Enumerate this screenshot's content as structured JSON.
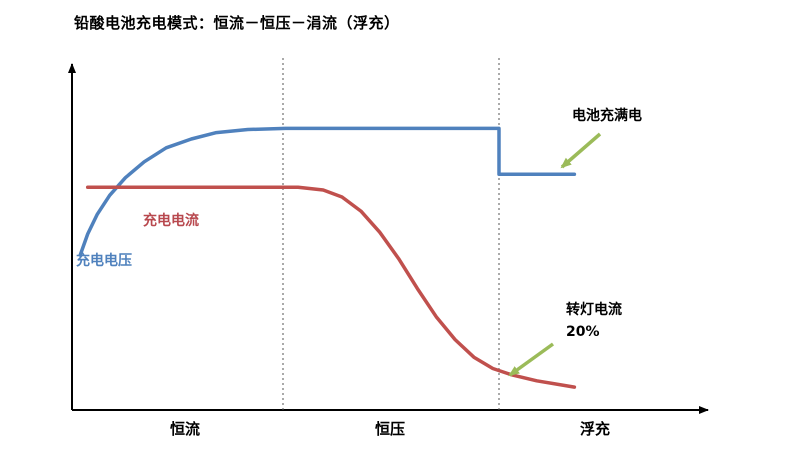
{
  "title": "铅酸电池充电模式：恒流－恒压－涓流（浮充）",
  "labels": {
    "current_label": "充电电流",
    "voltage_label": "充电电压",
    "full_charge": "电池充满电",
    "turn_light": "转灯电流\n20%",
    "phase1": "恒流",
    "phase2": "恒压",
    "phase3": "浮充"
  },
  "colors": {
    "voltage": "#4f81bd",
    "current": "#c0504d",
    "arrow": "#9bbb59",
    "axis": "#000000"
  },
  "chart_data": {
    "type": "line",
    "title": "铅酸电池充电模式：恒流－恒压－涓流（浮充）",
    "x_phases": [
      "恒流",
      "恒压",
      "浮充"
    ],
    "phase_boundaries_pct": [
      33.6,
      68
    ],
    "axis_range_pct": {
      "x": [
        0,
        100
      ],
      "y": [
        0,
        100
      ]
    },
    "grid": false,
    "series": [
      {
        "name": "充电电压",
        "color": "#4f81bd",
        "points": [
          [
            1.3,
            44
          ],
          [
            2.5,
            50
          ],
          [
            4,
            55.5
          ],
          [
            6,
            61
          ],
          [
            8.5,
            66
          ],
          [
            11.5,
            70.5
          ],
          [
            15,
            74.5
          ],
          [
            19,
            77
          ],
          [
            23,
            78.8
          ],
          [
            28,
            79.7
          ],
          [
            34,
            80
          ],
          [
            68,
            80
          ],
          [
            68,
            67
          ],
          [
            80,
            67
          ]
        ]
      },
      {
        "name": "充电电流",
        "color": "#c0504d",
        "points": [
          [
            2.5,
            63.3
          ],
          [
            20,
            63.3
          ],
          [
            36,
            63.3
          ],
          [
            40,
            62.5
          ],
          [
            43,
            60.5
          ],
          [
            46,
            56.5
          ],
          [
            49,
            50.5
          ],
          [
            52,
            43
          ],
          [
            55,
            34.5
          ],
          [
            58,
            26.5
          ],
          [
            61,
            20
          ],
          [
            64,
            15
          ],
          [
            67,
            11.8
          ],
          [
            70,
            10
          ],
          [
            74,
            8.3
          ],
          [
            80,
            6.5
          ]
        ]
      }
    ],
    "annotations": [
      {
        "text": "电池充满电",
        "points_to_series": "充电电压"
      },
      {
        "text": "转灯电流 20%",
        "points_to_series": "充电电流"
      }
    ]
  }
}
